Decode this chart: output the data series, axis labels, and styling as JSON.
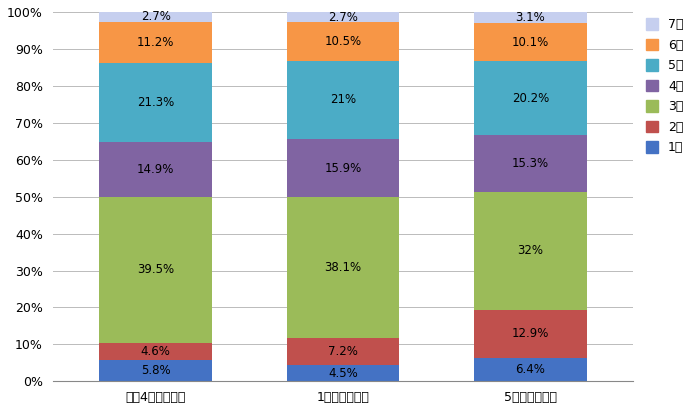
{
  "categories": [
    "令和4年の構成比",
    "1年前の構成比",
    "5年前の構成比"
  ],
  "series": [
    {
      "label": "1級",
      "values": [
        5.8,
        4.5,
        6.4
      ],
      "color": "#4472C4"
    },
    {
      "label": "2級",
      "values": [
        4.6,
        7.2,
        12.9
      ],
      "color": "#C0504D"
    },
    {
      "label": "3級",
      "values": [
        39.5,
        38.1,
        32.0
      ],
      "color": "#9BBB59"
    },
    {
      "label": "4級",
      "values": [
        14.9,
        15.9,
        15.3
      ],
      "color": "#8064A2"
    },
    {
      "label": "5級",
      "values": [
        21.3,
        21.0,
        20.2
      ],
      "color": "#4BACC6"
    },
    {
      "label": "6級",
      "values": [
        11.2,
        10.5,
        10.1
      ],
      "color": "#F79646"
    },
    {
      "label": "7級",
      "values": [
        2.7,
        2.7,
        3.1
      ],
      "color": "#C6CFEF"
    }
  ],
  "ylim": [
    0,
    100
  ],
  "yticks": [
    0,
    10,
    20,
    30,
    40,
    50,
    60,
    70,
    80,
    90,
    100
  ],
  "bar_width": 0.6,
  "figsize": [
    6.9,
    4.11
  ],
  "dpi": 100,
  "background_color": "#FFFFFF",
  "grid_color": "#BBBBBB",
  "font_size_label": 8.5,
  "font_size_tick": 9,
  "font_size_legend": 9
}
